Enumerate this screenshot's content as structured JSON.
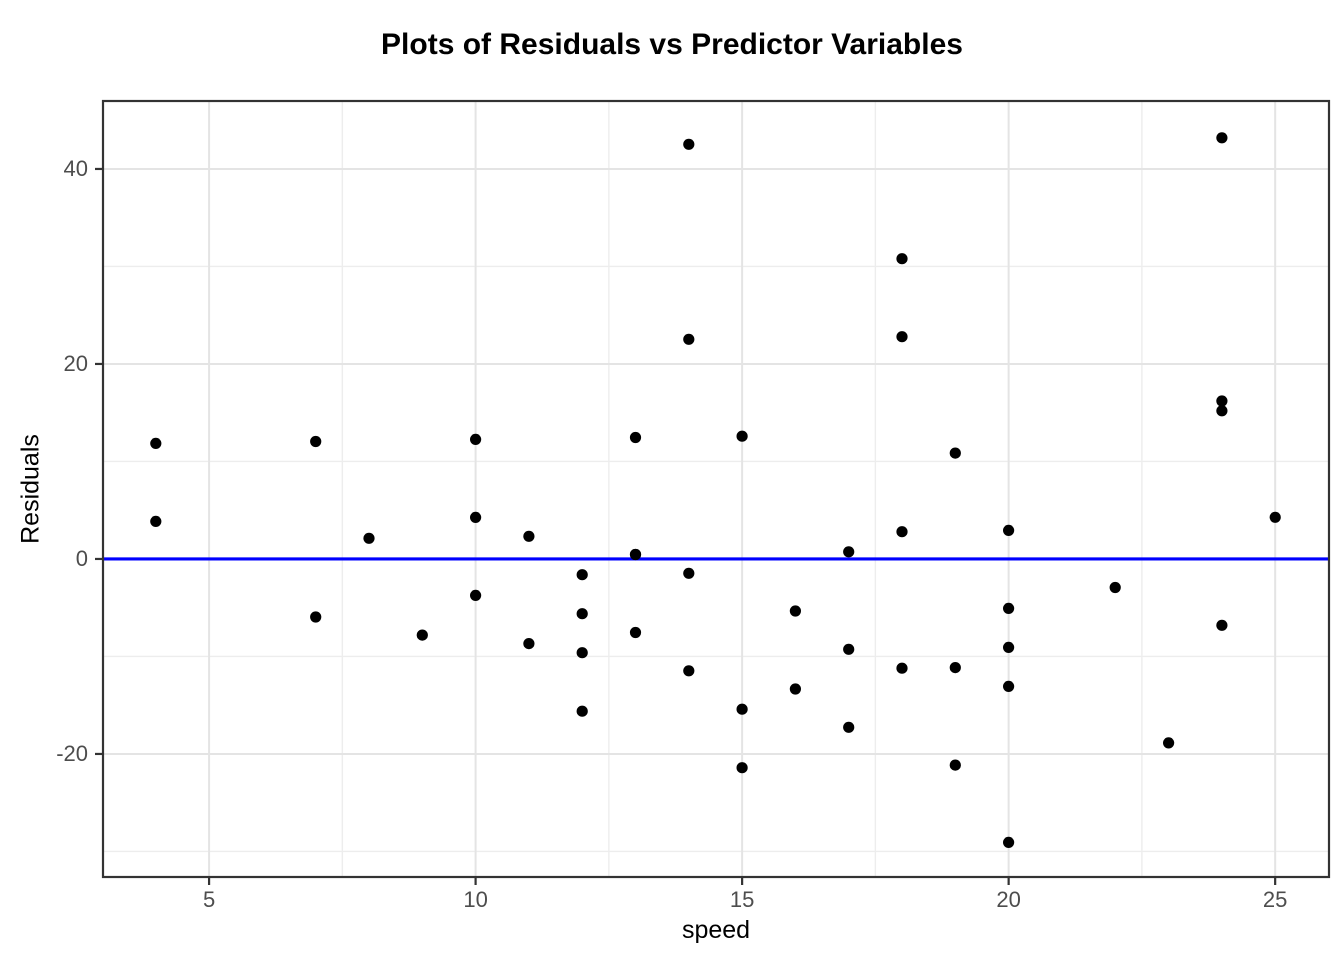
{
  "chart_data": {
    "type": "scatter",
    "title": "Plots of Residuals vs Predictor Variables",
    "xlabel": "speed",
    "ylabel": "Residuals",
    "xlim": [
      3.01,
      26.01
    ],
    "ylim": [
      -32.62,
      46.97
    ],
    "x_ticks": [
      5,
      10,
      15,
      20,
      25
    ],
    "x_minor_gridlines": [
      7.5,
      12.5,
      17.5,
      22.5
    ],
    "y_ticks": [
      -20,
      0,
      20,
      40
    ],
    "y_minor_gridlines": [
      -30,
      -10,
      10,
      30
    ],
    "grid": true,
    "legend_position": "none",
    "hline": {
      "y": 0,
      "color": "#0000ff"
    },
    "colors": {
      "point": "#000000",
      "reference_line": "#0000ff",
      "grid_major": "#e4e4e4",
      "grid_minor": "#ededed",
      "panel_border": "#333333",
      "tick_mark": "#333333",
      "tick_label": "#4d4d4d",
      "axis_title": "#000000",
      "background": "#ffffff"
    },
    "series": [
      {
        "name": "residuals",
        "points": [
          [
            4,
            3.85
          ],
          [
            4,
            11.85
          ],
          [
            7,
            -5.95
          ],
          [
            7,
            12.05
          ],
          [
            8,
            2.12
          ],
          [
            9,
            -7.81
          ],
          [
            10,
            -3.74
          ],
          [
            10,
            4.26
          ],
          [
            10,
            12.26
          ],
          [
            11,
            -8.68
          ],
          [
            11,
            2.32
          ],
          [
            12,
            -15.61
          ],
          [
            12,
            -9.61
          ],
          [
            12,
            -5.61
          ],
          [
            12,
            -1.61
          ],
          [
            13,
            -7.54
          ],
          [
            13,
            0.46
          ],
          [
            13,
            0.46
          ],
          [
            13,
            12.46
          ],
          [
            14,
            -11.47
          ],
          [
            14,
            -1.47
          ],
          [
            14,
            22.53
          ],
          [
            14,
            42.53
          ],
          [
            15,
            -21.41
          ],
          [
            15,
            -15.41
          ],
          [
            15,
            12.59
          ],
          [
            16,
            -13.34
          ],
          [
            16,
            -5.34
          ],
          [
            17,
            -17.27
          ],
          [
            17,
            -9.27
          ],
          [
            17,
            0.73
          ],
          [
            18,
            -11.2
          ],
          [
            18,
            2.8
          ],
          [
            18,
            22.8
          ],
          [
            18,
            30.8
          ],
          [
            19,
            -21.14
          ],
          [
            19,
            -11.14
          ],
          [
            19,
            10.86
          ],
          [
            20,
            -29.07
          ],
          [
            20,
            -13.07
          ],
          [
            20,
            -9.07
          ],
          [
            20,
            -5.07
          ],
          [
            20,
            2.93
          ],
          [
            22,
            -2.93
          ],
          [
            23,
            -18.87
          ],
          [
            24,
            -6.8
          ],
          [
            24,
            15.2
          ],
          [
            24,
            16.2
          ],
          [
            24,
            43.2
          ],
          [
            25,
            4.27
          ]
        ]
      }
    ]
  }
}
